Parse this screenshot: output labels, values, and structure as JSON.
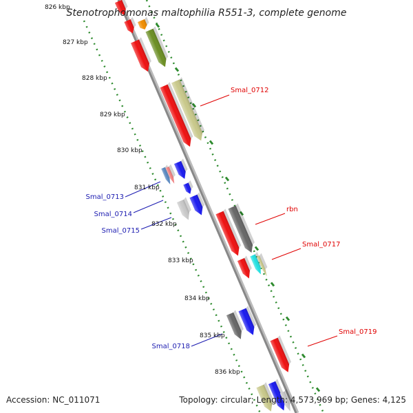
{
  "title": "Stenotrophomonas maltophilia R551-3, complete genome",
  "footer": {
    "accession": "Accession: NC_011071",
    "summary": "Topology: circular; Length: 4,573,969 bp; Genes: 4,125"
  },
  "scale_labels": [
    "826 kbp",
    "827 kbp",
    "828 kbp",
    "829 kbp",
    "830 kbp",
    "831 kbp",
    "832 kbp",
    "833 kbp",
    "834 kbp",
    "835 kbp",
    "836 kbp"
  ],
  "gene_labels": [
    {
      "name": "Smal_0712",
      "strand": "plus"
    },
    {
      "name": "Smal_0713",
      "strand": "minus"
    },
    {
      "name": "Smal_0714",
      "strand": "minus"
    },
    {
      "name": "Smal_0715",
      "strand": "minus"
    },
    {
      "name": "rbn",
      "strand": "plus"
    },
    {
      "name": "Smal_0717",
      "strand": "plus"
    },
    {
      "name": "Smal_0718",
      "strand": "minus"
    },
    {
      "name": "Smal_0719",
      "strand": "plus"
    }
  ],
  "colors": {
    "backbone": "#888888",
    "ticks": "#2e8b2e",
    "plus_label": "#e00000",
    "minus_label": "#1a1ab0",
    "red": "#ee1111",
    "blue": "#1a1aee",
    "olive": "#6b8e23",
    "khaki": "#c8c88a",
    "gray": "#666666",
    "lightgray": "#c8c8c8",
    "cyan": "#22e0e0",
    "orange": "#f08c00",
    "steel": "#5a88c0",
    "pink": "#f08080"
  }
}
